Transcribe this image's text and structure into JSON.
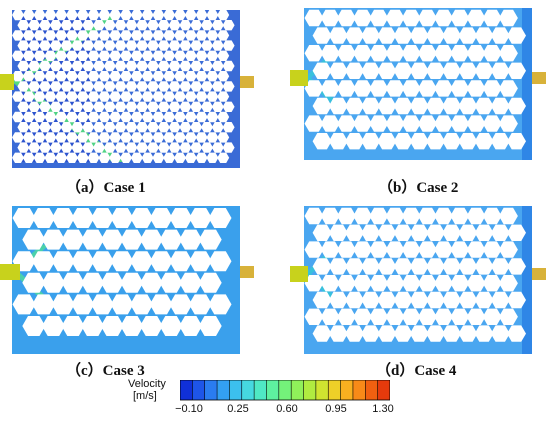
{
  "panels": [
    {
      "id": "a",
      "caption": "（a）Case 1",
      "fill_color": "#3a6bd6",
      "cell_color": "#ffffff",
      "jet_color": "#54e07c",
      "inlet_color": "#c8d21c",
      "outlet_color": "#d8b23a"
    },
    {
      "id": "b",
      "caption": "（b）Case 2",
      "fill_color": "#4aa6f0",
      "cell_color": "#ffffff",
      "jet_color": "#36c6d8",
      "inlet_color": "#c8d21c",
      "outlet_color": "#d8b23a"
    },
    {
      "id": "c",
      "caption": "（c）Case 3",
      "fill_color": "#3aa0ec",
      "cell_color": "#ffffff",
      "jet_color": "#4fd8a0",
      "inlet_color": "#c8d21c",
      "outlet_color": "#d8b23a"
    },
    {
      "id": "d",
      "caption": "（d）Case 4",
      "fill_color": "#4aa6f0",
      "cell_color": "#ffffff",
      "jet_color": "#36c6d8",
      "inlet_color": "#c8d21c",
      "outlet_color": "#d8b23a"
    }
  ],
  "legend": {
    "title_line1": "Velocity",
    "title_line2": "[m/s]",
    "ticks": [
      "−0.10",
      "0.25",
      "0.60",
      "0.95",
      "1.30"
    ],
    "colors": [
      "#1030d8",
      "#1e55e8",
      "#2a7cf0",
      "#33a0f2",
      "#3cc0ee",
      "#46d8e0",
      "#4fe8c4",
      "#5ef0a0",
      "#74f27a",
      "#90f05a",
      "#b0ec40",
      "#d0e430",
      "#eed028",
      "#f8b020",
      "#f88a18",
      "#f06010",
      "#e63a0c"
    ]
  }
}
